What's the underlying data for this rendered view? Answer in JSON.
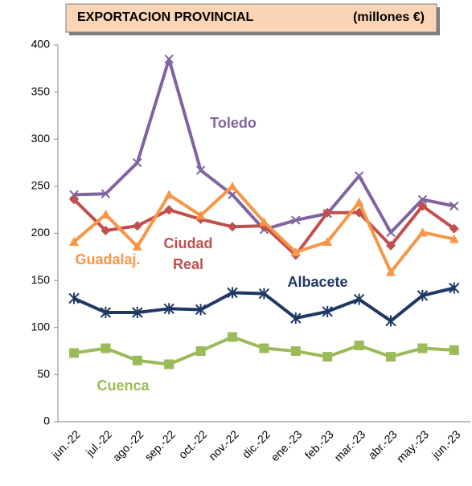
{
  "chart_data": {
    "type": "line",
    "title": "EXPORTACION PROVINCIAL",
    "subtitle": "(millones €)",
    "categories": [
      "jun.-22",
      "jul.-22",
      "ago.-22",
      "sep.-22",
      "oct.-22",
      "nov.-22",
      "dic.-22",
      "ene.-23",
      "feb.-23",
      "mar.-23",
      "abr.-23",
      "may.-23",
      "jun.-23"
    ],
    "series": [
      {
        "name": "Toledo",
        "color": "#8064a2",
        "marker": "x",
        "values": [
          241,
          242,
          275,
          385,
          267,
          241,
          204,
          214,
          221,
          261,
          201,
          236,
          229
        ]
      },
      {
        "name": "Ciudad Real",
        "color": "#c0504d",
        "marker": "diamond",
        "values": [
          236,
          203,
          208,
          225,
          215,
          207,
          208,
          177,
          222,
          222,
          187,
          229,
          205
        ]
      },
      {
        "name": "Guadalaj.",
        "color": "#f79646",
        "marker": "triangle",
        "values": [
          191,
          220,
          186,
          241,
          219,
          250,
          212,
          180,
          191,
          233,
          159,
          201,
          194
        ]
      },
      {
        "name": "Albacete",
        "color": "#1f3864",
        "marker": "star",
        "values": [
          131,
          116,
          116,
          120,
          119,
          137,
          136,
          110,
          117,
          130,
          107,
          134,
          142
        ]
      },
      {
        "name": "Cuenca",
        "color": "#9bbb59",
        "marker": "square",
        "values": [
          73,
          78,
          65,
          61,
          75,
          90,
          78,
          75,
          69,
          81,
          69,
          78,
          76
        ]
      }
    ],
    "ylim": [
      0,
      400
    ],
    "yticks": [
      0,
      50,
      100,
      150,
      200,
      250,
      300,
      350,
      400
    ],
    "grid": false
  }
}
